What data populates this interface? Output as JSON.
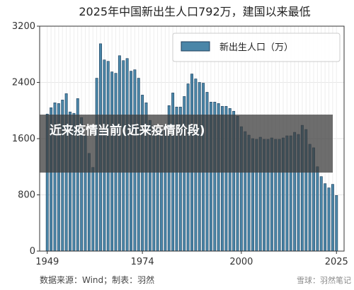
{
  "chart_data": {
    "type": "bar",
    "title": "2025年中国新出生人口792万，建国以来最低",
    "xlabel": "",
    "ylabel": "",
    "legend": {
      "label": "新出生人口（万）",
      "placement": "top-right"
    },
    "ylim": [
      0,
      3200
    ],
    "yticks": [
      0,
      800,
      1600,
      2400,
      3200
    ],
    "xticks": [
      1949,
      1974,
      2000,
      2025
    ],
    "xlim": [
      1947,
      2027
    ],
    "grid": true,
    "bar_color": "#4a86a8",
    "bar_edge_color": "#1f3f5c",
    "series": [
      {
        "name": "新出生人口（万）",
        "x": [
          1949,
          1950,
          1951,
          1952,
          1953,
          1954,
          1955,
          1956,
          1957,
          1958,
          1959,
          1960,
          1961,
          1962,
          1963,
          1964,
          1965,
          1966,
          1967,
          1968,
          1969,
          1970,
          1971,
          1972,
          1973,
          1974,
          1975,
          1976,
          1977,
          1978,
          1979,
          1980,
          1981,
          1982,
          1983,
          1984,
          1985,
          1986,
          1987,
          1988,
          1989,
          1990,
          1991,
          1992,
          1993,
          1994,
          1995,
          1996,
          1997,
          1998,
          1999,
          2000,
          2001,
          2002,
          2003,
          2004,
          2005,
          2006,
          2007,
          2008,
          2009,
          2010,
          2011,
          2012,
          2013,
          2014,
          2015,
          2016,
          2017,
          2018,
          2019,
          2020,
          2021,
          2022,
          2023,
          2024,
          2025
        ],
        "values": [
          1950,
          2040,
          2110,
          2100,
          2150,
          2240,
          1980,
          1960,
          2170,
          1900,
          1640,
          1390,
          1190,
          2460,
          2950,
          2720,
          2700,
          2550,
          2530,
          2780,
          2710,
          2740,
          2560,
          2580,
          2460,
          2220,
          2110,
          1860,
          1790,
          1750,
          1730,
          1780,
          2070,
          2250,
          2050,
          2050,
          2200,
          2380,
          2520,
          2450,
          2400,
          2390,
          2260,
          2120,
          2120,
          2100,
          2060,
          2060,
          2030,
          1990,
          1920,
          1770,
          1700,
          1650,
          1600,
          1590,
          1620,
          1590,
          1590,
          1610,
          1590,
          1590,
          1610,
          1640,
          1640,
          1690,
          1660,
          1790,
          1730,
          1520,
          1470,
          1200,
          1060,
          960,
          900,
          950,
          792
        ]
      }
    ],
    "source_note": "数据来源：Wind；制表：羽然"
  },
  "overlay": {
    "text": "近来疫情当前(近来疫情阶段)"
  },
  "watermark": {
    "text": "雪球：羽然笔记"
  }
}
